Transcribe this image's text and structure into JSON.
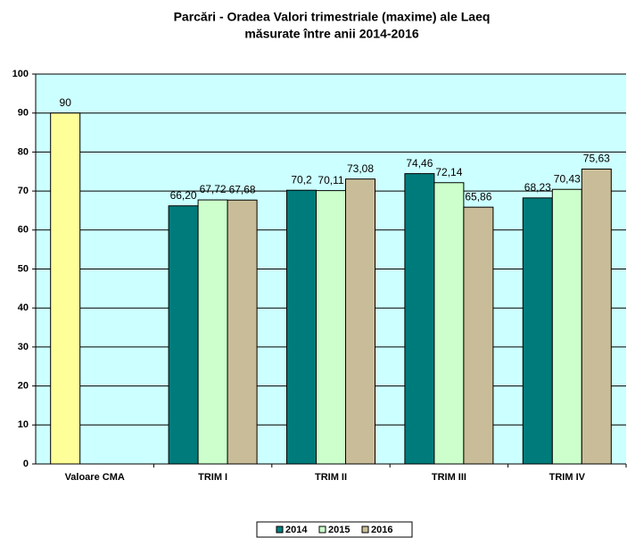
{
  "chart_data": {
    "type": "bar",
    "title": [
      "Parcări - Oradea  Valori trimestriale (maxime) ale Laeq",
      "măsurate între anii 2014-2016"
    ],
    "categories": [
      "Valoare CMA",
      "TRIM I",
      "TRIM II",
      "TRIM III",
      "TRIM IV"
    ],
    "series": [
      {
        "name": "2014",
        "color": "#007b7b",
        "point_colors": [
          "#ffff99",
          "#007b7b",
          "#007b7b",
          "#007b7b",
          "#007b7b"
        ],
        "values": [
          90,
          66.2,
          70.2,
          74.46,
          68.23
        ],
        "value_labels": [
          "90",
          "66,20",
          "70,2",
          "74,46",
          "68,23"
        ]
      },
      {
        "name": "2015",
        "color": "#ccffcc",
        "values": [
          null,
          67.72,
          70.11,
          72.14,
          70.43
        ],
        "value_labels": [
          null,
          "67,72",
          "70,11",
          "72,14",
          "70,43"
        ]
      },
      {
        "name": "2016",
        "color": "#c8bd98",
        "values": [
          null,
          67.68,
          73.08,
          65.86,
          75.63
        ],
        "value_labels": [
          null,
          "67,68",
          "73,08",
          "65,86",
          "75,63"
        ]
      }
    ],
    "ylim": [
      0,
      100
    ],
    "yticks": [
      0,
      10,
      20,
      30,
      40,
      50,
      60,
      70,
      80,
      90,
      100
    ],
    "grid": true,
    "plot_background": "#ccffff",
    "legend": "bottom"
  }
}
